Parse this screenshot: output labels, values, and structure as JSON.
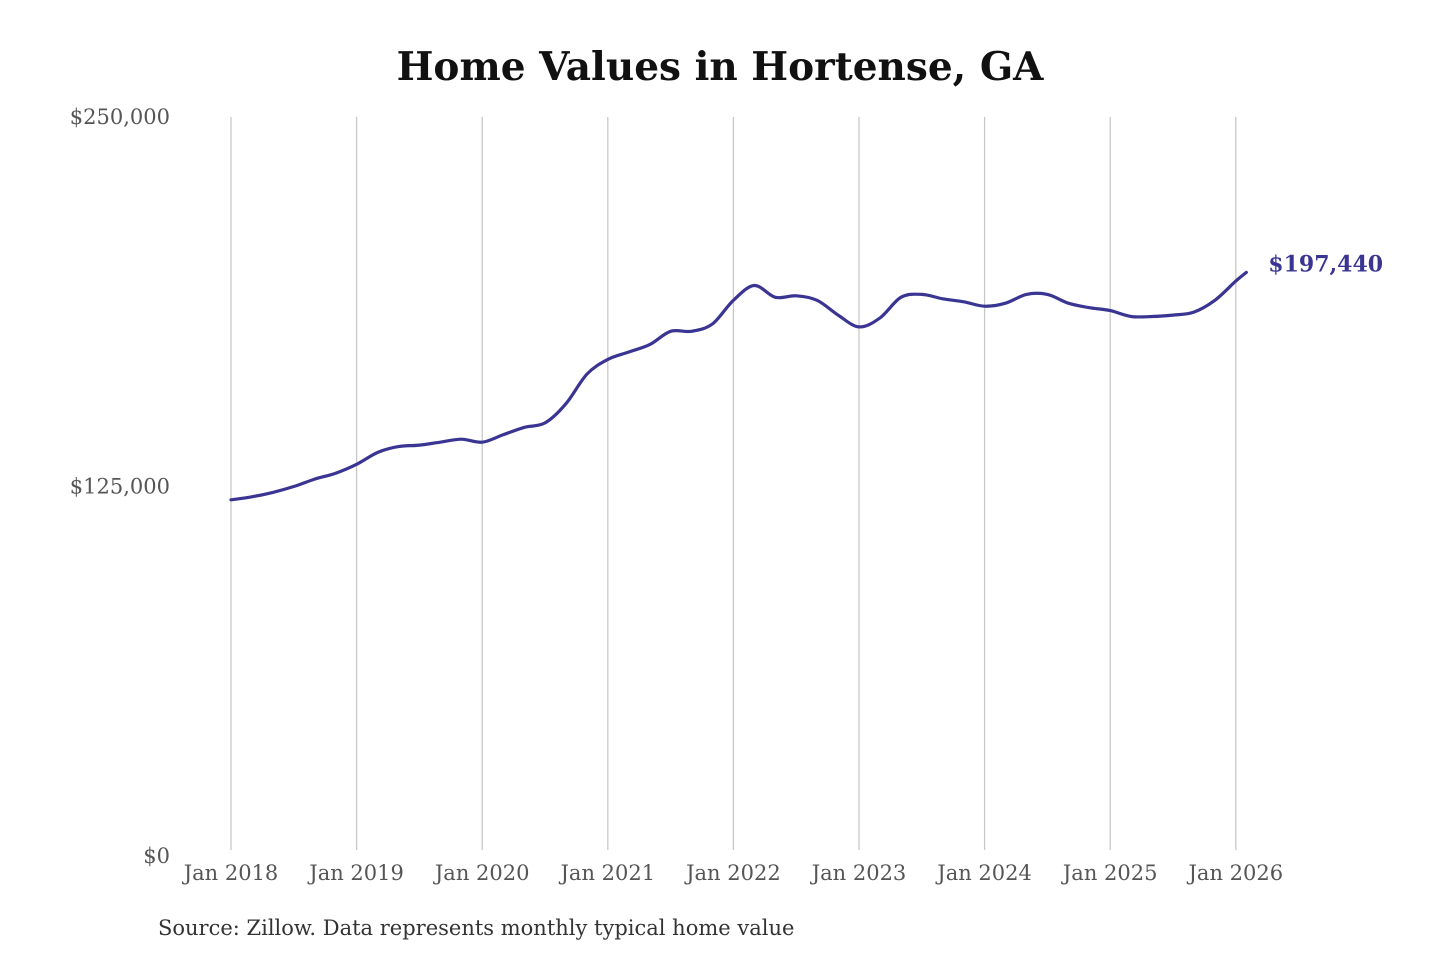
{
  "chart_data": {
    "type": "line",
    "title": "Home Values in Hortense, GA",
    "source": "Source: Zillow. Data represents monthly typical home value",
    "ylim": [
      0,
      250000
    ],
    "y_ticks": [
      {
        "value": 0,
        "label": "$0"
      },
      {
        "value": 125000,
        "label": "$125,000"
      },
      {
        "value": 250000,
        "label": "$250,000"
      }
    ],
    "x_ticks": [
      {
        "date": "2018-01",
        "label": "Jan 2018"
      },
      {
        "date": "2019-01",
        "label": "Jan 2019"
      },
      {
        "date": "2020-01",
        "label": "Jan 2020"
      },
      {
        "date": "2021-01",
        "label": "Jan 2021"
      },
      {
        "date": "2022-01",
        "label": "Jan 2022"
      },
      {
        "date": "2023-01",
        "label": "Jan 2023"
      },
      {
        "date": "2024-01",
        "label": "Jan 2024"
      },
      {
        "date": "2025-01",
        "label": "Jan 2025"
      },
      {
        "date": "2026-01",
        "label": "Jan 2026"
      }
    ],
    "grid": {
      "vertical": true,
      "horizontal": false
    },
    "line_color": "#3a3592",
    "end_label": "$197,440",
    "series": [
      {
        "points": [
          [
            "2018-01",
            120500
          ],
          [
            "2018-03",
            121500
          ],
          [
            "2018-05",
            123000
          ],
          [
            "2018-07",
            125000
          ],
          [
            "2018-09",
            127500
          ],
          [
            "2018-11",
            129500
          ],
          [
            "2019-01",
            132500
          ],
          [
            "2019-03",
            136500
          ],
          [
            "2019-05",
            138500
          ],
          [
            "2019-07",
            139000
          ],
          [
            "2019-09",
            140000
          ],
          [
            "2019-11",
            141000
          ],
          [
            "2020-01",
            140000
          ],
          [
            "2020-03",
            142500
          ],
          [
            "2020-05",
            145000
          ],
          [
            "2020-07",
            146500
          ],
          [
            "2020-09",
            153000
          ],
          [
            "2020-11",
            163000
          ],
          [
            "2021-01",
            168000
          ],
          [
            "2021-03",
            170500
          ],
          [
            "2021-05",
            173000
          ],
          [
            "2021-07",
            177500
          ],
          [
            "2021-09",
            177500
          ],
          [
            "2021-11",
            180000
          ],
          [
            "2022-01",
            188000
          ],
          [
            "2022-03",
            193000
          ],
          [
            "2022-05",
            189000
          ],
          [
            "2022-07",
            189500
          ],
          [
            "2022-09",
            188000
          ],
          [
            "2022-11",
            183000
          ],
          [
            "2023-01",
            179000
          ],
          [
            "2023-03",
            182000
          ],
          [
            "2023-05",
            189000
          ],
          [
            "2023-07",
            190000
          ],
          [
            "2023-09",
            188500
          ],
          [
            "2023-11",
            187500
          ],
          [
            "2024-01",
            186000
          ],
          [
            "2024-03",
            187000
          ],
          [
            "2024-05",
            190000
          ],
          [
            "2024-07",
            190000
          ],
          [
            "2024-09",
            187000
          ],
          [
            "2024-11",
            185500
          ],
          [
            "2025-01",
            184500
          ],
          [
            "2025-03",
            182500
          ],
          [
            "2025-05",
            182500
          ],
          [
            "2025-07",
            183000
          ],
          [
            "2025-09",
            184000
          ],
          [
            "2025-11",
            188000
          ],
          [
            "2026-01",
            194500
          ],
          [
            "2026-02",
            197440
          ]
        ]
      }
    ]
  }
}
